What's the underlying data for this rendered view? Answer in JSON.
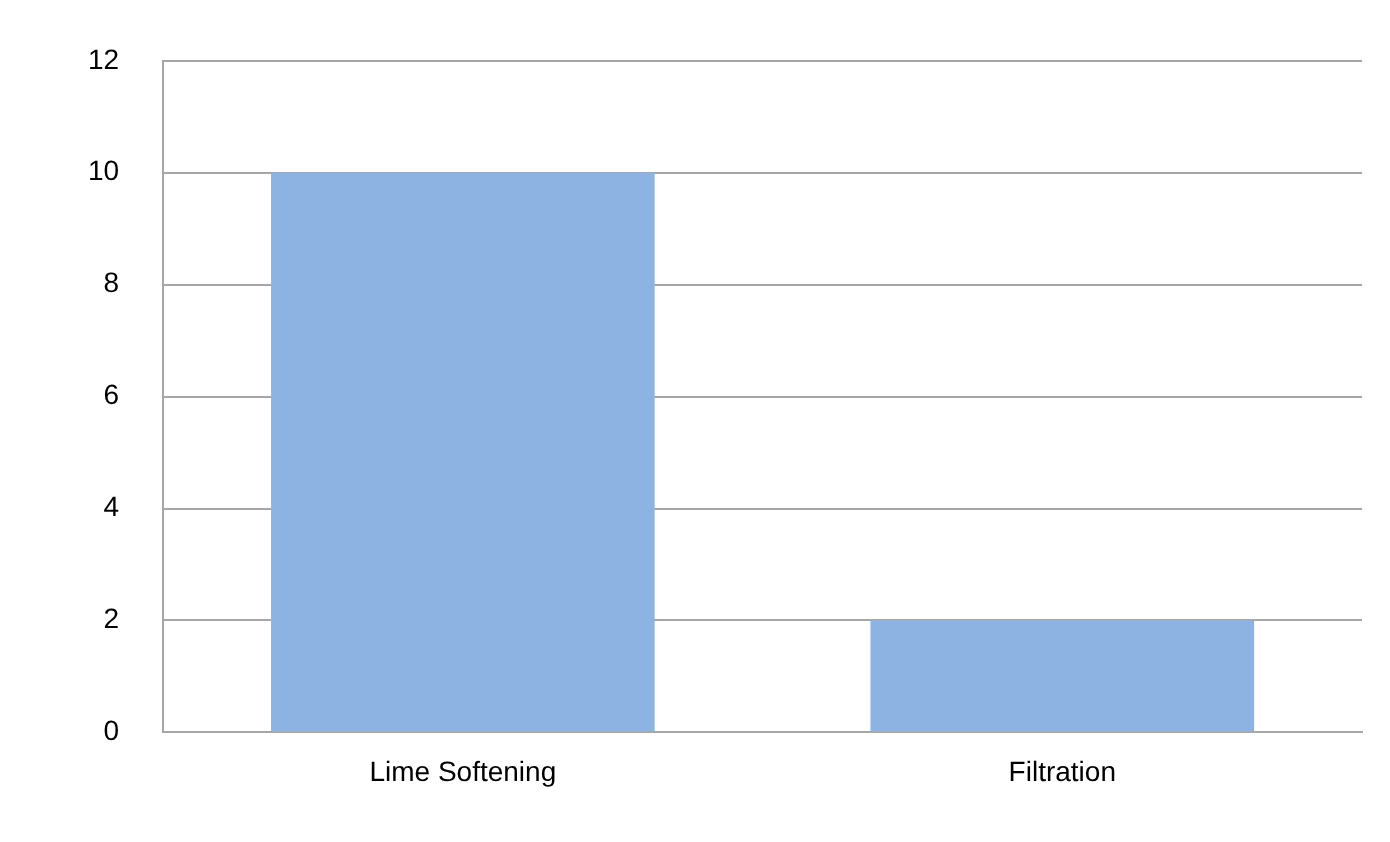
{
  "chart_data": {
    "type": "bar",
    "categories": [
      "Lime Softening",
      "Filtration"
    ],
    "values": [
      10,
      2
    ],
    "color": "#8db3e2",
    "ylim": [
      0,
      12
    ],
    "yticks": [
      0,
      2,
      4,
      6,
      8,
      10,
      12
    ],
    "grid": "y"
  }
}
